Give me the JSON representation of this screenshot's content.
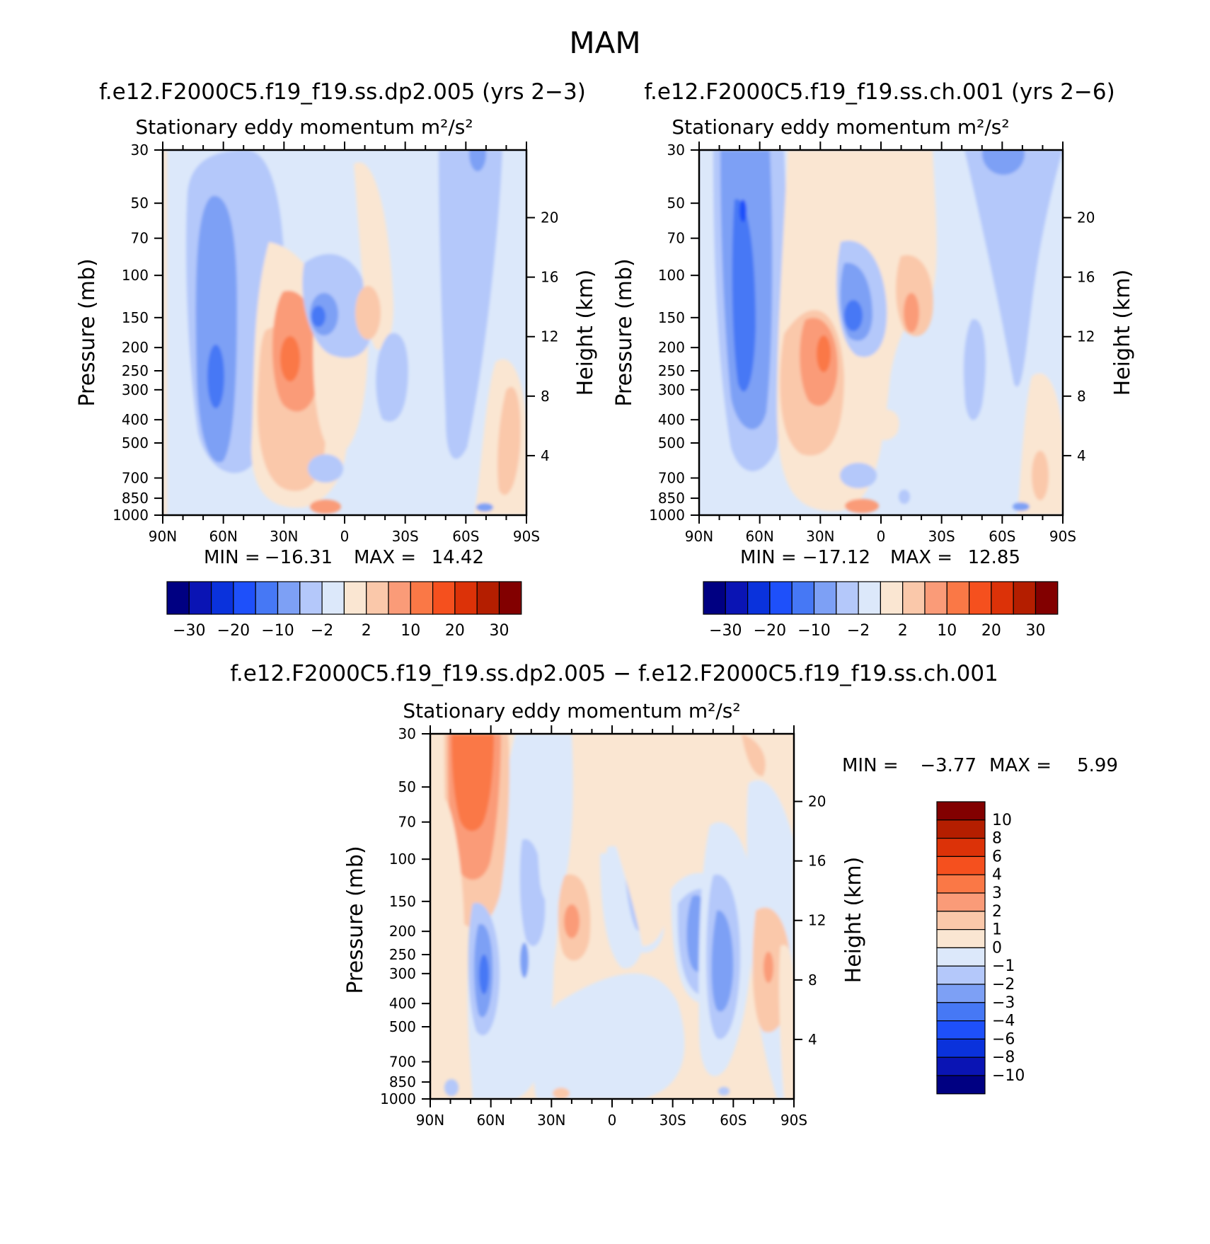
{
  "figure_title": "MAM",
  "colors": {
    "panel_scale": [
      "#000082",
      "#0a14b4",
      "#0a32dc",
      "#1e50fa",
      "#4678f5",
      "#7da0f5",
      "#b4c8fa",
      "#dce8fa",
      "#fae6d2",
      "#fac8aa",
      "#fa9b78",
      "#fa7846",
      "#f5501e",
      "#dc3208",
      "#b41e00",
      "#820000"
    ],
    "diff_scale": [
      "#000082",
      "#0a14b4",
      "#0a32dc",
      "#1e50fa",
      "#4678f5",
      "#7da0f5",
      "#b4c8fa",
      "#dce8fa",
      "#fae6d2",
      "#fac8aa",
      "#fa9b78",
      "#fa7846",
      "#f5501e",
      "#dc3208",
      "#b41e00",
      "#820000"
    ]
  },
  "chart_data": [
    {
      "type": "contour",
      "case": "f.e12.F2000C5.f19_f19.ss.dp2.005 (yrs 2-3)",
      "subtitle": "Stationary eddy momentum",
      "units": "m²/s²",
      "xlabel": "",
      "ylabel": "Pressure (mb)",
      "ylabel_right": "Height (km)",
      "x_ticks": [
        "90N",
        "60N",
        "30N",
        "0",
        "30S",
        "60S",
        "90S"
      ],
      "y_ticks": [
        30,
        50,
        70,
        100,
        150,
        200,
        250,
        300,
        400,
        500,
        700,
        850,
        1000
      ],
      "height_ticks": [
        20,
        16,
        12,
        8,
        4
      ],
      "min": "-16.31",
      "max": "14.42",
      "min_label": "MIN =",
      "max_label": "MAX =",
      "contour_levels": [
        -40,
        -30,
        -25,
        -20,
        -15,
        -10,
        -5,
        -2,
        0,
        2,
        5,
        10,
        15,
        20,
        25,
        30,
        40
      ],
      "colorbar_labels": [
        "-30",
        "-20",
        "-10",
        "-2",
        "2",
        "10",
        "20",
        "30"
      ]
    },
    {
      "type": "contour",
      "case": "f.e12.F2000C5.f19_f19.ss.ch.001 (yrs 2-6)",
      "subtitle": "Stationary eddy momentum",
      "units": "m²/s²",
      "xlabel": "",
      "ylabel": "Pressure (mb)",
      "ylabel_right": "Height (km)",
      "x_ticks": [
        "90N",
        "60N",
        "30N",
        "0",
        "30S",
        "60S",
        "90S"
      ],
      "y_ticks": [
        30,
        50,
        70,
        100,
        150,
        200,
        250,
        300,
        400,
        500,
        700,
        850,
        1000
      ],
      "height_ticks": [
        20,
        16,
        12,
        8,
        4
      ],
      "min": "-17.12",
      "max": "12.85",
      "min_label": "MIN =",
      "max_label": "MAX =",
      "contour_levels": [
        -40,
        -30,
        -25,
        -20,
        -15,
        -10,
        -5,
        -2,
        0,
        2,
        5,
        10,
        15,
        20,
        25,
        30,
        40
      ],
      "colorbar_labels": [
        "-30",
        "-20",
        "-10",
        "-2",
        "2",
        "10",
        "20",
        "30"
      ]
    },
    {
      "type": "contour",
      "case": "f.e12.F2000C5.f19_f19.ss.dp2.005 - f.e12.F2000C5.f19_f19.ss.ch.001",
      "subtitle": "Stationary eddy momentum",
      "units": "m²/s²",
      "xlabel": "",
      "ylabel": "Pressure (mb)",
      "ylabel_right": "Height (km)",
      "x_ticks": [
        "90N",
        "60N",
        "30N",
        "0",
        "30S",
        "60S",
        "90S"
      ],
      "y_ticks": [
        30,
        50,
        70,
        100,
        150,
        200,
        250,
        300,
        400,
        500,
        700,
        850,
        1000
      ],
      "height_ticks": [
        20,
        16,
        12,
        8,
        4
      ],
      "min": "-3.77",
      "max": "5.99",
      "min_label": "MIN =",
      "max_label": "MAX =",
      "contour_levels": [
        -12,
        -10,
        -8,
        -6,
        -4,
        -3,
        -2,
        -1,
        0,
        1,
        2,
        3,
        4,
        6,
        8,
        10,
        12
      ],
      "colorbar_labels": [
        "10",
        "8",
        "6",
        "4",
        "3",
        "2",
        "1",
        "0",
        "-1",
        "-2",
        "-3",
        "-4",
        "-6",
        "-8",
        "-10"
      ]
    }
  ]
}
